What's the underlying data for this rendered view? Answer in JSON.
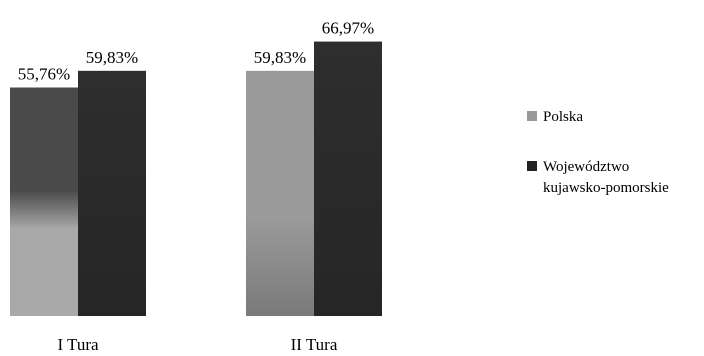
{
  "chart_data": {
    "type": "bar",
    "categories": [
      "I Tura",
      "II Tura"
    ],
    "series": [
      {
        "name": "Polska",
        "values": [
          55.76,
          59.83
        ],
        "labels": [
          "55,76%",
          "59,83%"
        ]
      },
      {
        "name": "Województwo kujawsko-pomorskie",
        "values": [
          59.83,
          66.97
        ],
        "labels": [
          "59,83%",
          "66,97%"
        ]
      }
    ],
    "legend_lines": [
      [
        "Polska"
      ],
      [
        "Województwo",
        "kujawsko-pomorskie"
      ]
    ],
    "legend_position": "right",
    "ylim": [
      0,
      75
    ],
    "grid": false,
    "colors": {
      "polska_I": "#4a4a4a",
      "polska_II": "#9a9a9a",
      "polska_II_bottom": "#7a7a7a",
      "polska_I_bottom": "#a9a9a9",
      "woj": "#2e2e2e",
      "woj_dark": "#262626",
      "legend_polska": "#999999",
      "legend_woj": "#222222"
    }
  }
}
